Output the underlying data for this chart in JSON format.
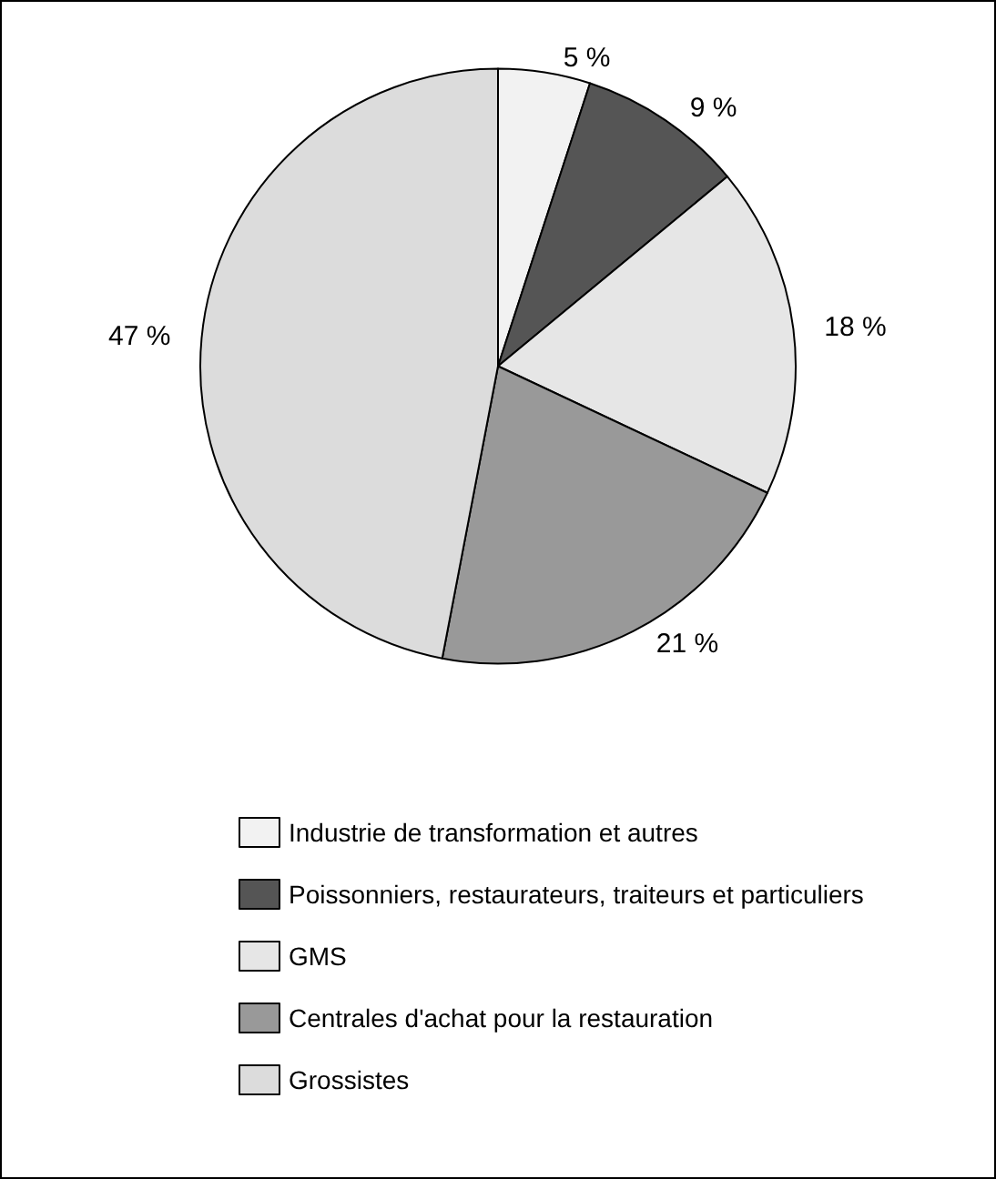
{
  "chart_data": {
    "type": "pie",
    "categories": [
      "Industrie de transformation et autres",
      "Poissonniers, restaurateurs, traiteurs et particuliers",
      "GMS",
      "Centrales d'achat pour la restauration",
      "Grossistes"
    ],
    "values": [
      5,
      9,
      18,
      21,
      47
    ],
    "colors": [
      "#f2f2f2",
      "#555555",
      "#e6e6e6",
      "#999999",
      "#dcdcdc"
    ],
    "value_labels": [
      "5 %",
      "9 %",
      "18 %",
      "21 %",
      "47 %"
    ],
    "legend": "bottom"
  }
}
